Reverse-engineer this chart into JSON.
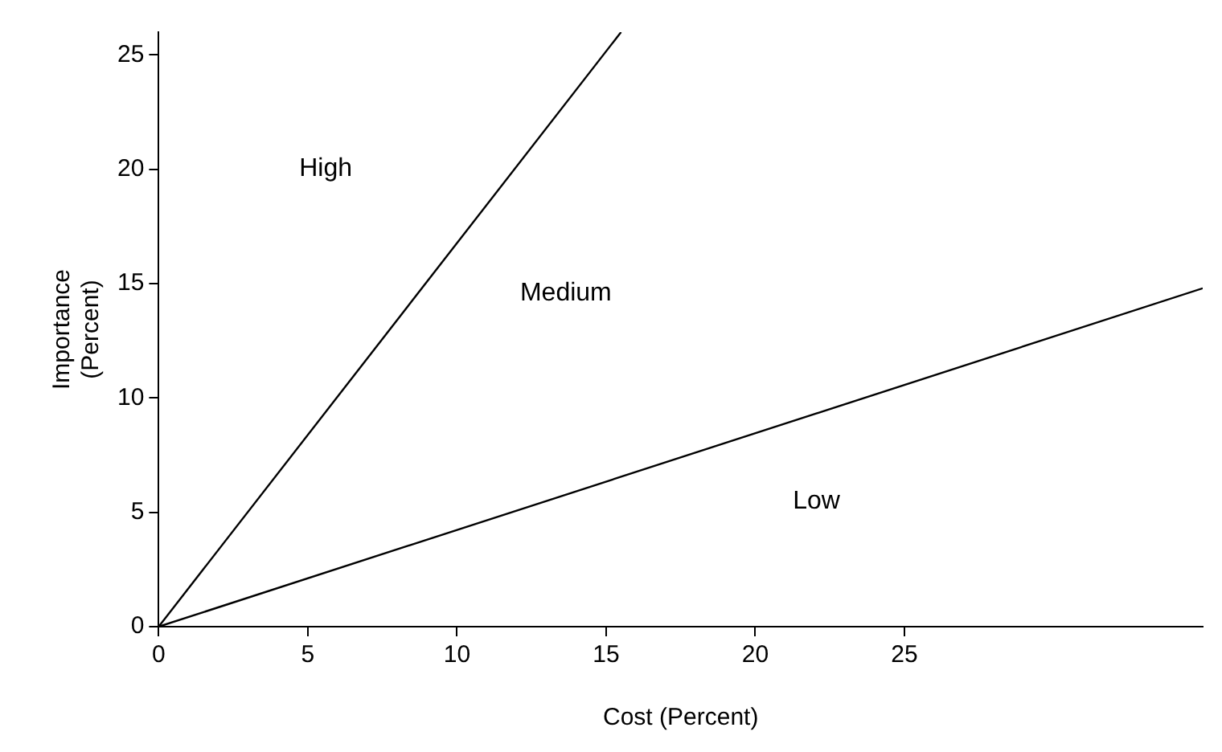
{
  "chart_data": {
    "type": "line",
    "xlabel": "Cost (Percent)",
    "ylabel": "Importance (Percent)",
    "xlim": [
      0,
      35
    ],
    "ylim": [
      0,
      26
    ],
    "xticks": [
      0,
      5,
      10,
      15,
      20,
      25
    ],
    "yticks": [
      0,
      5,
      10,
      15,
      20,
      25
    ],
    "grid": false,
    "legend": false,
    "marker": "none",
    "line_style": "solid",
    "series": [
      {
        "color": "#000000",
        "x": [
          0,
          15.5
        ],
        "values": [
          0,
          26
        ]
      },
      {
        "color": "#000000",
        "x": [
          0,
          35
        ],
        "values": [
          0,
          14.8
        ]
      }
    ],
    "annotations": [
      "High",
      "Medium",
      "Low"
    ]
  }
}
